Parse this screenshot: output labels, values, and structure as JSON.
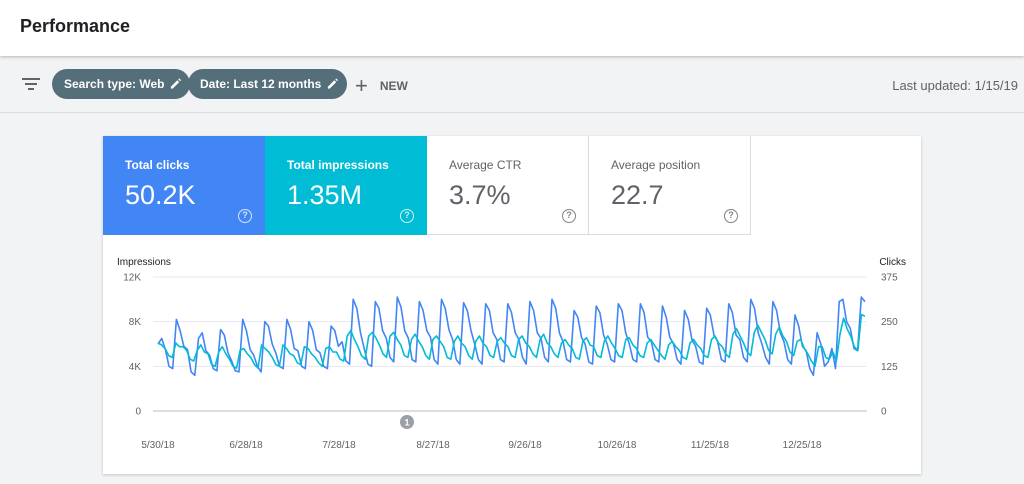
{
  "header": {
    "title": "Performance"
  },
  "filters": {
    "search_type": "Search type: Web",
    "date": "Date: Last 12 months",
    "new_label": "NEW",
    "last_updated": "Last updated: 1/15/19"
  },
  "metrics": [
    {
      "label": "Total clicks",
      "value": "50.2K",
      "help": "?"
    },
    {
      "label": "Total impressions",
      "value": "1.35M",
      "help": "?"
    },
    {
      "label": "Average CTR",
      "value": "3.7%",
      "help": "?"
    },
    {
      "label": "Average position",
      "value": "22.7",
      "help": "?"
    }
  ],
  "colors": {
    "clicks": "#4285f4",
    "impressions": "#00bcd4",
    "chip": "#546e7a"
  },
  "chart_data": {
    "type": "line",
    "left_axis_title": "Impressions",
    "right_axis_title": "Clicks",
    "left_ticks": [
      "12K",
      "8K",
      "4K",
      "0"
    ],
    "right_ticks": [
      "375",
      "250",
      "125",
      "0"
    ],
    "left_ylim": [
      0,
      12000
    ],
    "right_ylim": [
      0,
      375
    ],
    "x_labels": [
      "5/30/18",
      "6/28/18",
      "7/28/18",
      "8/27/18",
      "9/26/18",
      "10/26/18",
      "11/25/18",
      "12/25/18"
    ],
    "annotation": "1",
    "series": [
      {
        "name": "Impressions",
        "axis": "left",
        "color": "#4285f4",
        "values": [
          6000,
          6500,
          5500,
          4000,
          3800,
          8200,
          7200,
          5800,
          5500,
          3500,
          3200,
          6500,
          7000,
          5400,
          5000,
          3800,
          3600,
          7300,
          6800,
          5200,
          4500,
          3600,
          3500,
          8200,
          7200,
          5500,
          5000,
          4000,
          3500,
          8000,
          7600,
          6000,
          5200,
          4000,
          3800,
          8200,
          7300,
          5600,
          5400,
          4000,
          3800,
          8000,
          7200,
          5500,
          5200,
          4000,
          3800,
          7600,
          7200,
          5800,
          6200,
          4500,
          4200,
          10000,
          9200,
          7000,
          5600,
          4200,
          4000,
          9800,
          9200,
          7200,
          6500,
          4800,
          4400,
          10200,
          9300,
          7200,
          6500,
          4600,
          4400,
          9800,
          9000,
          7200,
          6600,
          4600,
          4200,
          10000,
          9200,
          7300,
          6400,
          4600,
          4200,
          9700,
          9000,
          7200,
          6000,
          4600,
          4200,
          9600,
          9000,
          7000,
          6400,
          4600,
          4400,
          9600,
          8800,
          7000,
          6400,
          4800,
          4200,
          9800,
          9000,
          7000,
          6500,
          4800,
          4400,
          10000,
          9200,
          7000,
          6200,
          4600,
          4400,
          9000,
          8400,
          6600,
          6000,
          4400,
          4200,
          9400,
          8800,
          6800,
          6000,
          4600,
          4400,
          9600,
          9000,
          7000,
          6000,
          4600,
          4400,
          9600,
          8800,
          6600,
          6200,
          4600,
          4400,
          9400,
          8400,
          6600,
          6000,
          4600,
          4200,
          9000,
          8200,
          6400,
          5800,
          4400,
          4200,
          9200,
          8600,
          6800,
          6200,
          4600,
          4400,
          9600,
          8800,
          6800,
          6400,
          4800,
          4400,
          10000,
          9200,
          7000,
          6000,
          4800,
          4200,
          9800,
          9000,
          7000,
          6200,
          4600,
          4200,
          8600,
          7600,
          5800,
          5400,
          3800,
          3200,
          7000,
          6000,
          4000,
          4400,
          5600,
          3800,
          9800,
          10000,
          8000,
          7400,
          5600,
          5400,
          10200,
          9800
        ]
      },
      {
        "name": "Clicks",
        "axis": "right",
        "color": "#00bcd4",
        "values": [
          190,
          185,
          175,
          155,
          150,
          190,
          180,
          180,
          170,
          145,
          140,
          170,
          185,
          165,
          160,
          130,
          125,
          165,
          180,
          160,
          145,
          125,
          120,
          170,
          175,
          160,
          150,
          130,
          120,
          185,
          175,
          165,
          150,
          130,
          125,
          185,
          175,
          160,
          155,
          135,
          130,
          180,
          175,
          160,
          150,
          135,
          125,
          175,
          180,
          165,
          165,
          145,
          140,
          210,
          225,
          200,
          180,
          155,
          145,
          210,
          220,
          205,
          185,
          160,
          150,
          210,
          220,
          200,
          185,
          155,
          150,
          200,
          215,
          195,
          180,
          155,
          145,
          200,
          210,
          195,
          180,
          150,
          145,
          195,
          210,
          190,
          180,
          155,
          145,
          195,
          210,
          190,
          180,
          155,
          150,
          195,
          205,
          190,
          180,
          155,
          150,
          200,
          210,
          190,
          180,
          160,
          150,
          200,
          215,
          190,
          180,
          160,
          150,
          190,
          200,
          185,
          175,
          150,
          145,
          195,
          205,
          185,
          180,
          155,
          150,
          195,
          210,
          190,
          175,
          155,
          150,
          200,
          205,
          185,
          175,
          155,
          150,
          190,
          200,
          185,
          170,
          155,
          145,
          185,
          195,
          180,
          170,
          150,
          145,
          190,
          200,
          185,
          175,
          155,
          150,
          200,
          210,
          190,
          180,
          160,
          150,
          215,
          230,
          210,
          190,
          165,
          155,
          220,
          240,
          220,
          200,
          170,
          160,
          215,
          235,
          210,
          195,
          165,
          155,
          195,
          200,
          175,
          160,
          140,
          125,
          180,
          180,
          150,
          145,
          165,
          140,
          215,
          260,
          230,
          210,
          180,
          170,
          270,
          265
        ]
      }
    ]
  }
}
